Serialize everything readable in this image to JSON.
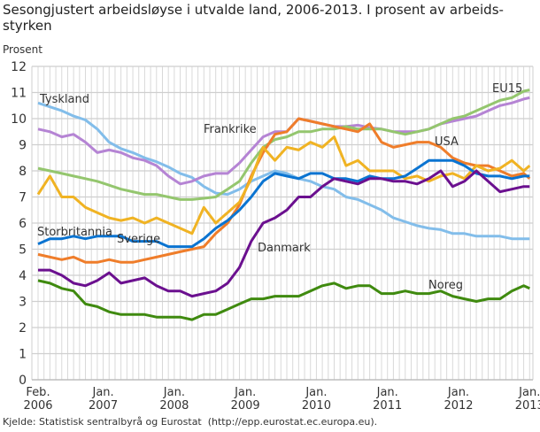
{
  "chart_data": {
    "type": "line",
    "title": [
      "Sesongjustert arbeidsløyse i utvalde land, 2006-2013. I prosent av arbeids-",
      "styrken"
    ],
    "ylabel": "Prosent",
    "ylim": [
      0,
      12
    ],
    "yticks": [
      "0",
      "1",
      "2",
      "3",
      "4",
      "5",
      "6",
      "7",
      "8",
      "9",
      "10",
      "11",
      "12"
    ],
    "xticks": [
      {
        "date": "2006-02",
        "line1": "Feb.",
        "line2": "2006"
      },
      {
        "date": "2007-01",
        "line1": "Jan.",
        "line2": "2007"
      },
      {
        "date": "2008-01",
        "line1": "Jan.",
        "line2": "2008"
      },
      {
        "date": "2009-01",
        "line1": "Jan.",
        "line2": "2009"
      },
      {
        "date": "2010-01",
        "line1": "Jan.",
        "line2": "2010"
      },
      {
        "date": "2011-01",
        "line1": "Jan.",
        "line2": "2011"
      },
      {
        "date": "2012-01",
        "line1": "Jan.",
        "line2": "2012"
      },
      {
        "date": "2013-01",
        "line1": "Jan.",
        "line2": "2013"
      }
    ],
    "grid": true,
    "legend": "inline labels",
    "x": [
      "2006-02",
      "2006-04",
      "2006-06",
      "2006-08",
      "2006-10",
      "2006-12",
      "2007-02",
      "2007-04",
      "2007-06",
      "2007-08",
      "2007-10",
      "2007-12",
      "2008-02",
      "2008-04",
      "2008-06",
      "2008-08",
      "2008-10",
      "2008-12",
      "2009-02",
      "2009-04",
      "2009-06",
      "2009-08",
      "2009-10",
      "2009-12",
      "2010-02",
      "2010-04",
      "2010-06",
      "2010-08",
      "2010-10",
      "2010-12",
      "2011-02",
      "2011-04",
      "2011-06",
      "2011-08",
      "2011-10",
      "2011-12",
      "2012-02",
      "2012-04",
      "2012-06",
      "2012-08",
      "2012-10",
      "2012-12",
      "2013-01"
    ],
    "series": [
      {
        "name": "Tyskland",
        "color": "#82bdea",
        "values": [
          10.6,
          10.45,
          10.3,
          10.1,
          9.95,
          9.6,
          9.1,
          8.85,
          8.7,
          8.5,
          8.35,
          8.15,
          7.9,
          7.75,
          7.4,
          7.15,
          7.1,
          7.3,
          7.6,
          7.8,
          8.0,
          7.9,
          7.7,
          7.6,
          7.4,
          7.3,
          7.0,
          6.9,
          6.7,
          6.5,
          6.2,
          6.05,
          5.9,
          5.8,
          5.75,
          5.6,
          5.6,
          5.5,
          5.5,
          5.5,
          5.4,
          5.4,
          5.4
        ]
      },
      {
        "name": "Frankrike",
        "color": "#b584d4",
        "values": [
          9.6,
          9.5,
          9.3,
          9.4,
          9.1,
          8.7,
          8.8,
          8.7,
          8.5,
          8.4,
          8.2,
          7.8,
          7.5,
          7.6,
          7.8,
          7.9,
          7.9,
          8.3,
          8.8,
          9.3,
          9.5,
          9.5,
          10.0,
          9.9,
          9.8,
          9.7,
          9.7,
          9.75,
          9.65,
          9.6,
          9.5,
          9.5,
          9.5,
          9.6,
          9.8,
          9.9,
          10.0,
          10.1,
          10.3,
          10.5,
          10.6,
          10.75,
          10.8
        ]
      },
      {
        "name": "EU15",
        "color": "#94c66e",
        "values": [
          8.1,
          8.0,
          7.9,
          7.8,
          7.7,
          7.6,
          7.45,
          7.3,
          7.2,
          7.1,
          7.1,
          7.0,
          6.9,
          6.9,
          6.95,
          7.0,
          7.3,
          7.6,
          8.3,
          8.9,
          9.2,
          9.3,
          9.5,
          9.5,
          9.6,
          9.6,
          9.7,
          9.6,
          9.6,
          9.6,
          9.5,
          9.4,
          9.5,
          9.6,
          9.8,
          10.0,
          10.1,
          10.3,
          10.5,
          10.7,
          10.8,
          11.05,
          11.1
        ]
      },
      {
        "name": "USA",
        "color": "#ef7d2a",
        "values": [
          4.8,
          4.7,
          4.6,
          4.7,
          4.5,
          4.5,
          4.6,
          4.5,
          4.5,
          4.6,
          4.7,
          4.8,
          4.9,
          5.0,
          5.1,
          5.6,
          6.0,
          6.7,
          7.8,
          8.7,
          9.4,
          9.5,
          10.0,
          9.9,
          9.8,
          9.7,
          9.6,
          9.5,
          9.8,
          9.1,
          8.9,
          9.0,
          9.1,
          9.1,
          8.9,
          8.5,
          8.3,
          8.2,
          8.2,
          8.0,
          7.8,
          7.9,
          7.7
        ]
      },
      {
        "name": "Sverige",
        "color": "#f0b323",
        "values": [
          7.1,
          7.8,
          7.0,
          7.0,
          6.6,
          6.4,
          6.2,
          6.1,
          6.2,
          6.0,
          6.2,
          6.0,
          5.8,
          5.6,
          6.6,
          6.0,
          6.4,
          6.8,
          7.7,
          8.9,
          8.4,
          8.9,
          8.8,
          9.1,
          8.9,
          9.3,
          8.2,
          8.4,
          8.0,
          8.0,
          8.0,
          7.7,
          7.8,
          7.6,
          7.8,
          7.9,
          7.7,
          8.2,
          8.0,
          8.1,
          8.4,
          8.0,
          8.2
        ]
      },
      {
        "name": "Storbritannia",
        "color": "#0b74d1",
        "values": [
          5.2,
          5.4,
          5.4,
          5.5,
          5.4,
          5.5,
          5.5,
          5.5,
          5.3,
          5.3,
          5.3,
          5.1,
          5.1,
          5.1,
          5.4,
          5.8,
          6.1,
          6.5,
          7.0,
          7.6,
          7.9,
          7.8,
          7.7,
          7.9,
          7.9,
          7.7,
          7.7,
          7.6,
          7.8,
          7.7,
          7.7,
          7.8,
          8.1,
          8.4,
          8.4,
          8.4,
          8.2,
          7.9,
          7.8,
          7.8,
          7.7,
          7.8,
          7.8
        ]
      },
      {
        "name": "Danmark",
        "color": "#6b108f",
        "values": [
          4.2,
          4.2,
          4.0,
          3.7,
          3.6,
          3.8,
          4.1,
          3.7,
          3.8,
          3.9,
          3.6,
          3.4,
          3.4,
          3.2,
          3.3,
          3.4,
          3.7,
          4.3,
          5.3,
          6.0,
          6.2,
          6.5,
          7.0,
          7.0,
          7.4,
          7.7,
          7.6,
          7.5,
          7.7,
          7.7,
          7.6,
          7.6,
          7.5,
          7.7,
          8.0,
          7.4,
          7.6,
          8.0,
          7.6,
          7.2,
          7.3,
          7.4,
          7.4
        ]
      },
      {
        "name": "Noreg",
        "color": "#3f8a0f",
        "values": [
          3.8,
          3.7,
          3.5,
          3.4,
          2.9,
          2.8,
          2.6,
          2.5,
          2.5,
          2.5,
          2.4,
          2.4,
          2.4,
          2.3,
          2.5,
          2.5,
          2.7,
          2.9,
          3.1,
          3.1,
          3.2,
          3.2,
          3.2,
          3.4,
          3.6,
          3.7,
          3.5,
          3.6,
          3.6,
          3.3,
          3.3,
          3.4,
          3.3,
          3.3,
          3.4,
          3.2,
          3.1,
          3.0,
          3.1,
          3.1,
          3.4,
          3.6,
          3.5
        ]
      }
    ],
    "source": "Kjelde: Statistisk sentralbyrå og Eurostat  (http://epp.eurostat.ec.europa.eu)."
  }
}
